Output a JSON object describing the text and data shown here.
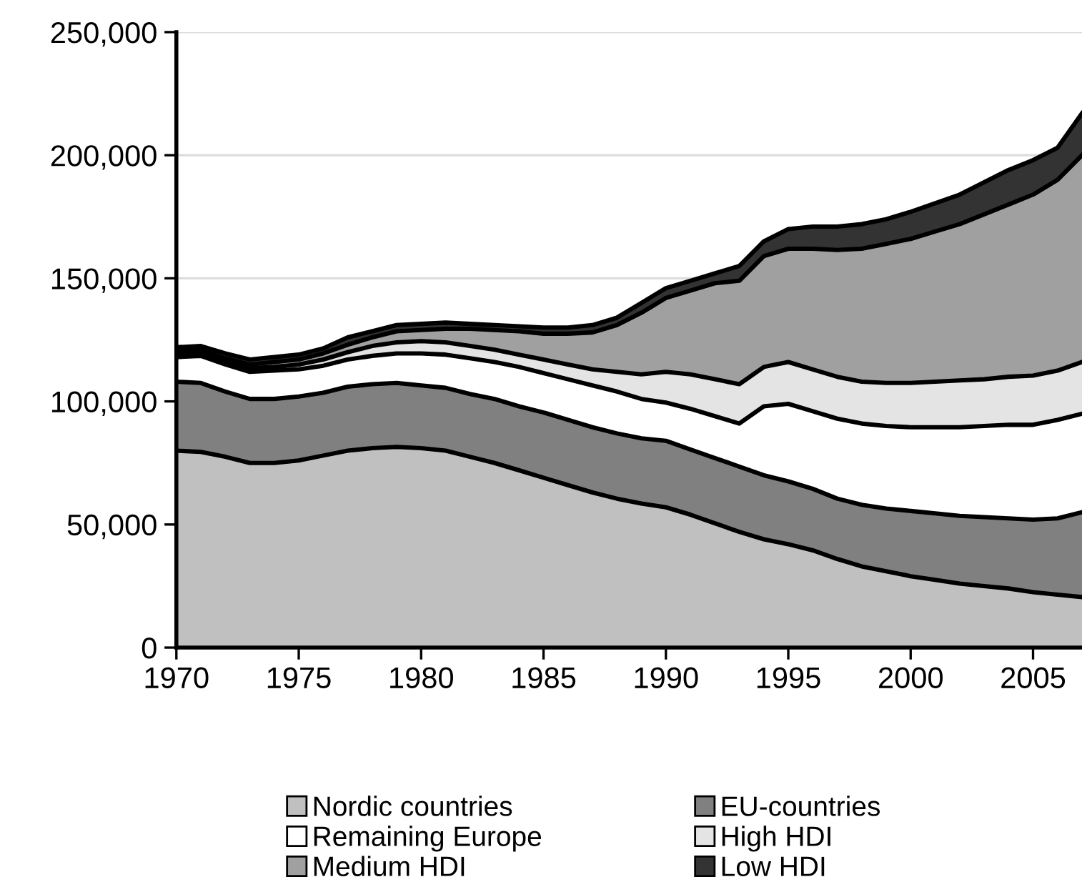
{
  "chart_data": {
    "type": "area",
    "stacked": true,
    "x": [
      1970,
      1971,
      1972,
      1973,
      1974,
      1975,
      1976,
      1977,
      1978,
      1979,
      1980,
      1981,
      1982,
      1983,
      1984,
      1985,
      1986,
      1987,
      1988,
      1989,
      1990,
      1991,
      1992,
      1993,
      1994,
      1995,
      1996,
      1997,
      1998,
      1999,
      2000,
      2001,
      2002,
      2003,
      2004,
      2005,
      2006,
      2007
    ],
    "series": [
      {
        "name": "Nordic countries",
        "color": "#c0c0c0",
        "values": [
          80000,
          79500,
          77500,
          75000,
          75000,
          76000,
          78000,
          80000,
          81000,
          81500,
          81000,
          80000,
          77500,
          75000,
          72000,
          69000,
          66000,
          63000,
          60500,
          58500,
          57000,
          54000,
          50500,
          47000,
          44000,
          42000,
          39500,
          36000,
          33000,
          31000,
          29000,
          27500,
          26000,
          25000,
          24000,
          22500,
          21500,
          20500
        ]
      },
      {
        "name": "EU-countries",
        "color": "#808080",
        "values": [
          28000,
          28000,
          26500,
          26000,
          26000,
          26000,
          25500,
          26000,
          26000,
          26000,
          25500,
          25500,
          25500,
          26000,
          26000,
          26500,
          26500,
          26500,
          26500,
          26500,
          27000,
          26500,
          26500,
          26500,
          26000,
          25500,
          25000,
          24500,
          25000,
          25500,
          26500,
          27000,
          27500,
          28000,
          28500,
          29500,
          31000,
          34500
        ]
      },
      {
        "name": "Remaining Europe",
        "color": "#ffffff",
        "values": [
          10000,
          11000,
          11000,
          11000,
          11500,
          11000,
          11000,
          11000,
          11500,
          12000,
          13000,
          13500,
          14500,
          15000,
          16000,
          16000,
          16500,
          17000,
          17000,
          16000,
          15500,
          16500,
          17000,
          17500,
          28000,
          31500,
          31500,
          32500,
          33000,
          33500,
          34000,
          35000,
          36000,
          37000,
          38000,
          38500,
          40000,
          40000
        ]
      },
      {
        "name": "High HDI",
        "color": "#e4e4e4",
        "values": [
          1500,
          1500,
          1500,
          1500,
          1500,
          2000,
          2500,
          3000,
          4000,
          4500,
          5000,
          5000,
          5000,
          5000,
          5000,
          5500,
          6000,
          6500,
          8000,
          10000,
          12500,
          14000,
          15000,
          16000,
          16000,
          17000,
          17000,
          17000,
          17000,
          17500,
          18000,
          18500,
          19000,
          19000,
          19500,
          20000,
          20000,
          21000
        ]
      },
      {
        "name": "Medium HDI",
        "color": "#a0a0a0",
        "values": [
          1000,
          1000,
          1000,
          1500,
          2000,
          2000,
          2500,
          3000,
          3500,
          4500,
          4500,
          5500,
          7000,
          8000,
          9500,
          10500,
          12500,
          15000,
          19000,
          25000,
          30000,
          34000,
          39000,
          42000,
          45000,
          46000,
          49000,
          51500,
          54000,
          56500,
          58500,
          61000,
          63500,
          67000,
          70000,
          73500,
          77500,
          84000
        ]
      },
      {
        "name": "Low HDI",
        "color": "#333333",
        "values": [
          1500,
          1500,
          2000,
          2000,
          2000,
          2000,
          2000,
          3000,
          2500,
          2500,
          2500,
          2500,
          2000,
          2000,
          2000,
          2500,
          2500,
          3000,
          3000,
          4000,
          4000,
          4000,
          4000,
          6000,
          6000,
          8000,
          9000,
          9500,
          10000,
          10000,
          11000,
          11500,
          12000,
          13000,
          14000,
          14000,
          13000,
          17000
        ]
      }
    ],
    "xlim": [
      1970,
      2007
    ],
    "xticks": [
      1970,
      1975,
      1980,
      1985,
      1990,
      1995,
      2000,
      2005
    ],
    "ylim": [
      0,
      250000
    ],
    "yticks": [
      0,
      {
        "value": 50000,
        "label": "50,000"
      },
      {
        "value": 100000,
        "label": "100,000"
      },
      {
        "value": 150000,
        "label": "150,000"
      },
      {
        "value": 200000,
        "label": "200,000"
      },
      {
        "value": 250000,
        "label": "250,000"
      }
    ],
    "grid": "y",
    "legend": "bottom"
  }
}
